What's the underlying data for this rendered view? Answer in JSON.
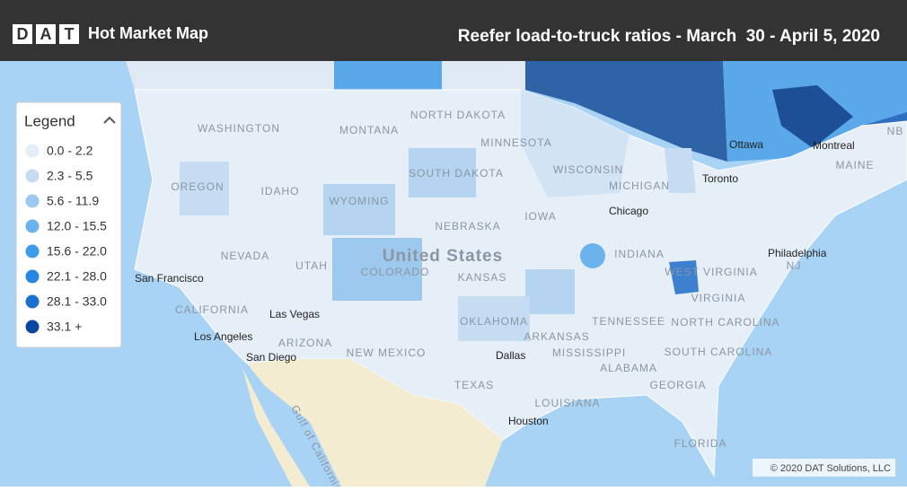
{
  "header": {
    "logo_letters": [
      "D",
      "A",
      "T"
    ],
    "app_name": "Hot Market Map",
    "title": "Reefer load-to-truck ratios - March  30 - April 5, 2020"
  },
  "legend": {
    "title": "Legend",
    "items": [
      {
        "label": "0.0 - 2.2",
        "color": "#e3eef9"
      },
      {
        "label": "2.3 - 5.5",
        "color": "#c6dcf3"
      },
      {
        "label": "5.6 - 11.9",
        "color": "#9ec9ef"
      },
      {
        "label": "12.0 - 15.5",
        "color": "#6cb2ec"
      },
      {
        "label": "15.6 - 22.0",
        "color": "#3d9be8"
      },
      {
        "label": "22.1 - 28.0",
        "color": "#2786e0"
      },
      {
        "label": "28.1 - 33.0",
        "color": "#1a6fcf"
      },
      {
        "label": "33.1 +",
        "color": "#0b47a1"
      }
    ]
  },
  "map": {
    "labels": [
      "WASHINGTON",
      "MONTANA",
      "NORTH DAKOTA",
      "MINNESOTA",
      "OREGON",
      "IDAHO",
      "WYOMING",
      "SOUTH DAKOTA",
      "WISCONSIN",
      "MICHIGAN",
      "Toronto",
      "Ottawa",
      "Montreal",
      "MAINE",
      "NB",
      "IOWA",
      "NEBRASKA",
      "Chicago",
      "NEVADA",
      "UTAH",
      "COLORADO",
      "United States",
      "KANSAS",
      "INDIANA",
      "WEST VIRGINIA",
      "Philadelphia",
      "NJ",
      "San Francisco",
      "CALIFORNIA",
      "Las Vegas",
      "OKLAHOMA",
      "ARKANSAS",
      "TENNESSEE",
      "VIRGINIA",
      "NORTH CAROLINA",
      "Los Angeles",
      "ARIZONA",
      "NEW MEXICO",
      "San Diego",
      "Dallas",
      "MISSISSIPPI",
      "ALABAMA",
      "SOUTH CAROLINA",
      "GEORGIA",
      "TEXAS",
      "LOUISIANA",
      "Houston",
      "FLORIDA",
      "Gulf of California"
    ],
    "copyright": "© 2020 DAT Solutions, LLC"
  }
}
